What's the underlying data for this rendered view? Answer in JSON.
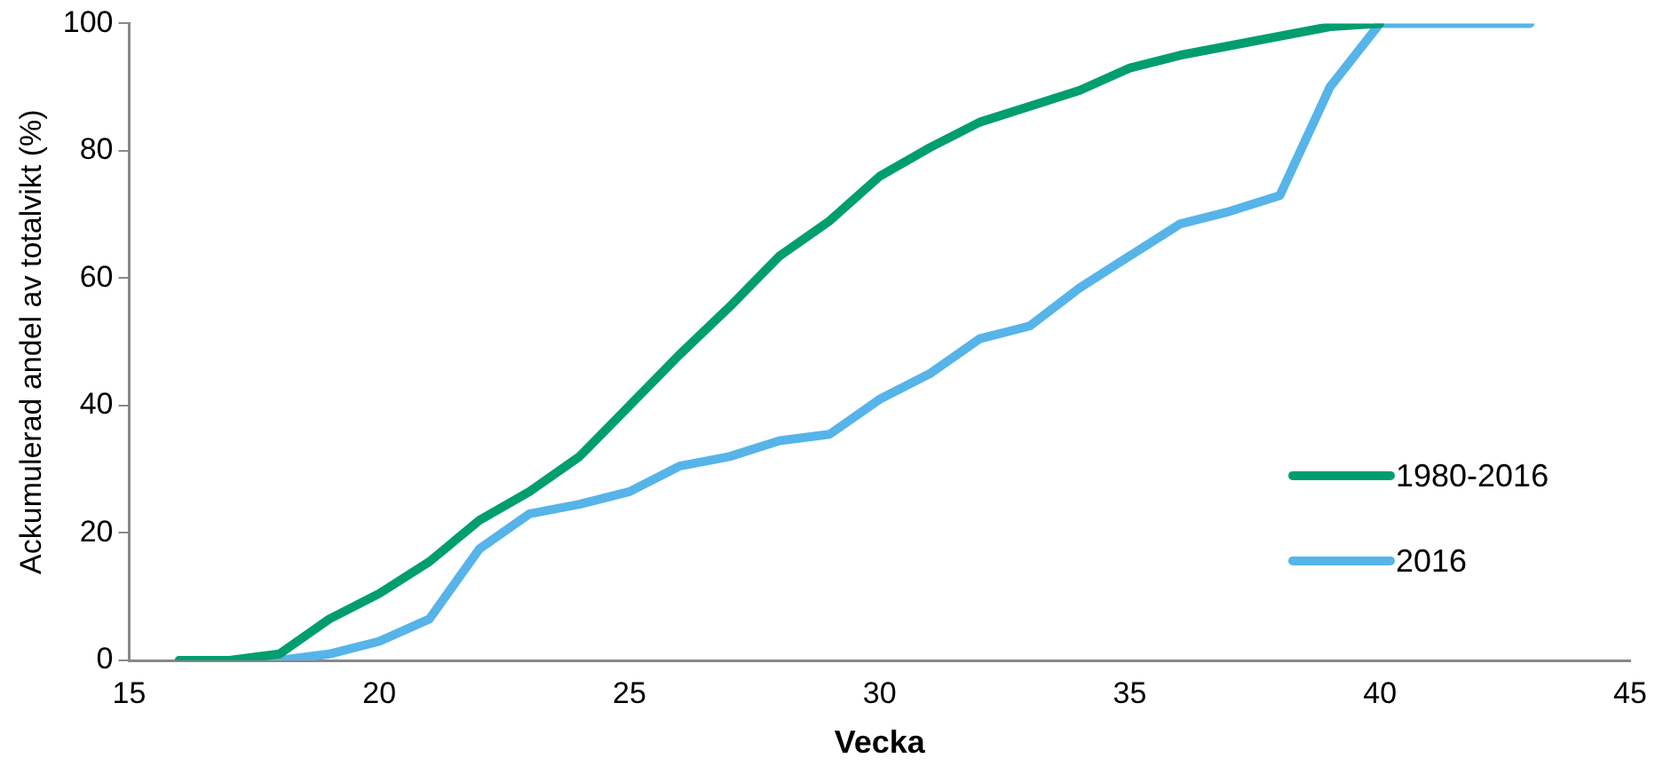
{
  "chart_data": {
    "type": "line",
    "xlabel": "Vecka",
    "ylabel": "Ackumulerad andel av totalvikt (%)",
    "xlim": [
      15,
      45
    ],
    "xticks": [
      15,
      20,
      25,
      30,
      35,
      40,
      45
    ],
    "ylim": [
      0,
      100
    ],
    "yticks": [
      0,
      20,
      40,
      60,
      80,
      100
    ],
    "grid": false,
    "legend": "right",
    "marker": "none",
    "line_style": "solid",
    "series": [
      {
        "name": "1980-2016",
        "color": "#009e6e",
        "x": [
          16,
          17,
          18,
          19,
          20,
          21,
          22,
          23,
          24,
          25,
          26,
          27,
          28,
          29,
          30,
          31,
          32,
          33,
          34,
          35,
          36,
          37,
          38,
          39,
          40
        ],
        "values": [
          0,
          0,
          1,
          6.5,
          10.5,
          15.5,
          22,
          26.5,
          32,
          40,
          48,
          55.5,
          63.5,
          69,
          76,
          80.5,
          84.5,
          87,
          89.5,
          93,
          95,
          96.5,
          98,
          99.5,
          100
        ]
      },
      {
        "name": "2016",
        "color": "#56b4e9",
        "x": [
          16,
          17,
          18,
          19,
          20,
          21,
          22,
          23,
          24,
          25,
          26,
          27,
          28,
          29,
          30,
          31,
          32,
          33,
          34,
          35,
          36,
          37,
          38,
          39,
          40,
          41,
          42,
          43
        ],
        "values": [
          0,
          0,
          0,
          1,
          3,
          6.5,
          17.5,
          23,
          24.5,
          26.5,
          30.5,
          32,
          34.5,
          35.5,
          41,
          45,
          50.5,
          52.5,
          58.5,
          63.5,
          68.5,
          70.5,
          73,
          90,
          100,
          100,
          100,
          100
        ]
      }
    ]
  }
}
